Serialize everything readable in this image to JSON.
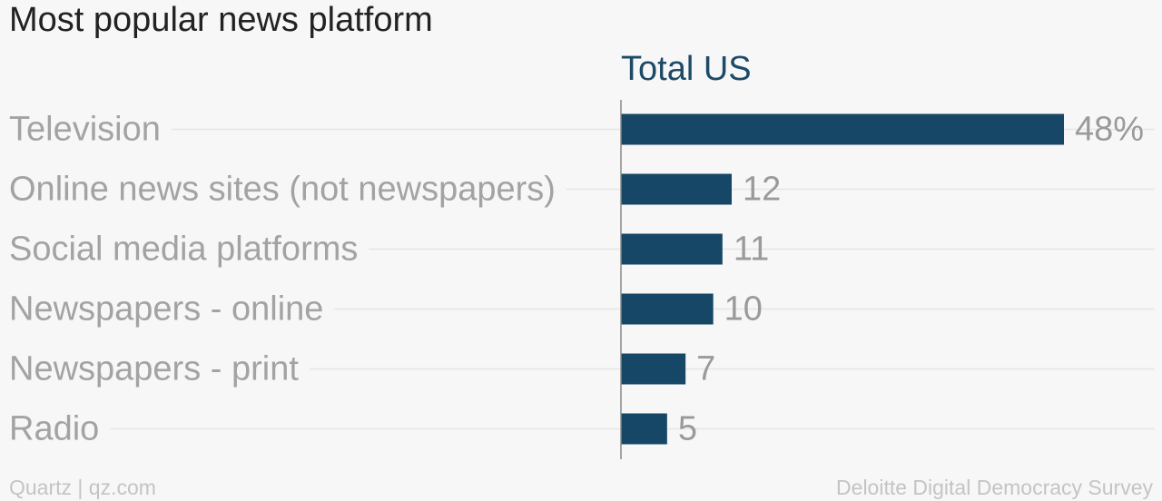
{
  "chart_data": {
    "type": "bar",
    "orientation": "horizontal",
    "title": "Most popular news platform",
    "series": [
      {
        "name": "Total US",
        "values": [
          48,
          12,
          11,
          10,
          7,
          5
        ],
        "value_labels": [
          "48%",
          "12",
          "11",
          "10",
          "7",
          "5"
        ]
      }
    ],
    "categories": [
      "Television",
      "Online news sites (not newspapers)",
      "Social media platforms",
      "Newspapers - online",
      "Newspapers - print",
      "Radio"
    ],
    "xlim": [
      0,
      48
    ],
    "grid": true,
    "colors": {
      "bar": "#174766",
      "series_label": "#1d4a66",
      "category_text": "#a3a3a3",
      "value_text": "#9a9a9a",
      "gridline": "#e6e6e6",
      "axis": "#8a8a8a"
    }
  },
  "footer": {
    "source_left": "Quartz | qz.com",
    "source_right": "Deloitte Digital Democracy Survey"
  }
}
